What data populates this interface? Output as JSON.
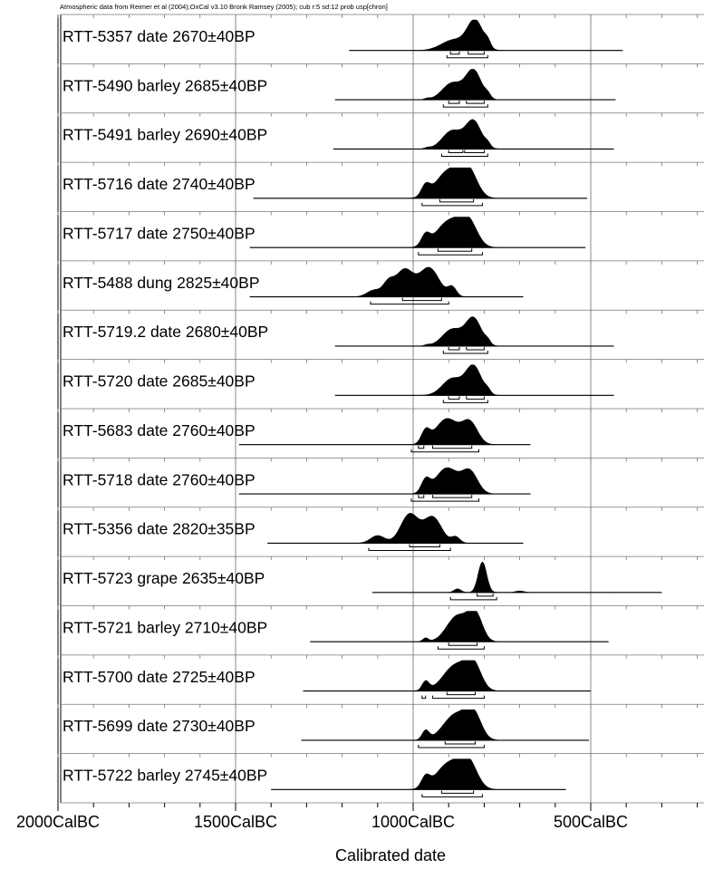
{
  "chart_data": {
    "type": "ridgeline",
    "header": "Atmospheric data from Reimer et al (2004);OxCal v3.10 Bronk Ramsey (2005); cub r:5 sd:12 prob usp[chron]",
    "xlabel": "Calibrated date",
    "xlim": [
      -2000,
      -200
    ],
    "x_ticks": [
      {
        "value": -2000,
        "label": "2000CalBC"
      },
      {
        "value": -1500,
        "label": "1500CalBC"
      },
      {
        "value": -1000,
        "label": "1000CalBC"
      },
      {
        "value": -500,
        "label": "500CalBC"
      }
    ],
    "series": [
      {
        "label": "RTT-5357 date  2670±40BP",
        "range": [
          -1180,
          -410
        ],
        "peaks": [
          [
            -885,
            0.35,
            35
          ],
          [
            -825,
            0.95,
            22
          ],
          [
            -790,
            0.18,
            8
          ]
        ],
        "sigma1": [
          [
            -895,
            -870
          ],
          [
            -845,
            -800
          ]
        ],
        "sigma2": [
          [
            -905,
            -790
          ]
        ]
      },
      {
        "label": "RTT-5490 barley  2685±40BP",
        "range": [
          -1220,
          -430
        ],
        "peaks": [
          [
            -890,
            0.55,
            28
          ],
          [
            -830,
            0.95,
            22
          ],
          [
            -790,
            0.12,
            8
          ],
          [
            -960,
            0.04,
            8
          ]
        ],
        "sigma1": [
          [
            -900,
            -870
          ],
          [
            -850,
            -800
          ]
        ],
        "sigma2": [
          [
            -915,
            -790
          ]
        ]
      },
      {
        "label": "RTT-5491 barley  2690±40BP",
        "range": [
          -1225,
          -435
        ],
        "peaks": [
          [
            -890,
            0.6,
            28
          ],
          [
            -830,
            0.9,
            22
          ],
          [
            -790,
            0.12,
            8
          ],
          [
            -960,
            0.04,
            8
          ]
        ],
        "sigma1": [
          [
            -900,
            -860
          ],
          [
            -855,
            -800
          ]
        ],
        "sigma2": [
          [
            -920,
            -790
          ]
        ]
      },
      {
        "label": "RTT-5716 date  2740±40BP",
        "range": [
          -1450,
          -510
        ],
        "peaks": [
          [
            -965,
            0.35,
            12
          ],
          [
            -900,
            0.9,
            35
          ],
          [
            -845,
            0.85,
            25
          ]
        ],
        "sigma1": [
          [
            -925,
            -830
          ]
        ],
        "sigma2": [
          [
            -975,
            -805
          ]
        ]
      },
      {
        "label": "RTT-5717 date  2750±40BP",
        "range": [
          -1460,
          -515
        ],
        "peaks": [
          [
            -965,
            0.35,
            12
          ],
          [
            -900,
            0.85,
            35
          ],
          [
            -845,
            0.8,
            25
          ]
        ],
        "sigma1": [
          [
            -930,
            -835
          ]
        ],
        "sigma2": [
          [
            -985,
            -805
          ]
        ]
      },
      {
        "label": "RTT-5488 dung  2825±40BP",
        "range": [
          -1460,
          -690
        ],
        "peaks": [
          [
            -1110,
            0.22,
            20
          ],
          [
            -1025,
            0.88,
            25
          ],
          [
            -955,
            0.95,
            28
          ],
          [
            -890,
            0.3,
            12
          ],
          [
            -1070,
            0.4,
            15
          ]
        ],
        "sigma1": [
          [
            -1030,
            -920
          ]
        ],
        "sigma2": [
          [
            -1120,
            -900
          ]
        ]
      },
      {
        "label": "RTT-5719.2 date  2680±40BP",
        "range": [
          -1220,
          -435
        ],
        "peaks": [
          [
            -890,
            0.55,
            28
          ],
          [
            -830,
            0.9,
            22
          ],
          [
            -790,
            0.12,
            8
          ],
          [
            -960,
            0.04,
            8
          ]
        ],
        "sigma1": [
          [
            -900,
            -870
          ],
          [
            -850,
            -800
          ]
        ],
        "sigma2": [
          [
            -915,
            -790
          ]
        ]
      },
      {
        "label": "RTT-5720 date  2685±40BP",
        "range": [
          -1220,
          -435
        ],
        "peaks": [
          [
            -890,
            0.55,
            28
          ],
          [
            -830,
            0.95,
            22
          ],
          [
            -790,
            0.12,
            8
          ]
        ],
        "sigma1": [
          [
            -900,
            -870
          ],
          [
            -850,
            -800
          ]
        ],
        "sigma2": [
          [
            -915,
            -790
          ]
        ]
      },
      {
        "label": "RTT-5683 date  2760±40BP",
        "range": [
          -1490,
          -670
        ],
        "peaks": [
          [
            -965,
            0.4,
            12
          ],
          [
            -905,
            0.85,
            32
          ],
          [
            -840,
            0.7,
            22
          ]
        ],
        "sigma1": [
          [
            -985,
            -970
          ],
          [
            -945,
            -835
          ]
        ],
        "sigma2": [
          [
            -1005,
            -815
          ]
        ]
      },
      {
        "label": "RTT-5718 date  2760±40BP",
        "range": [
          -1490,
          -670
        ],
        "peaks": [
          [
            -965,
            0.4,
            12
          ],
          [
            -905,
            0.85,
            32
          ],
          [
            -840,
            0.7,
            22
          ]
        ],
        "sigma1": [
          [
            -985,
            -970
          ],
          [
            -945,
            -835
          ]
        ],
        "sigma2": [
          [
            -1005,
            -815
          ]
        ]
      },
      {
        "label": "RTT-5356 date  2820±35BP",
        "range": [
          -1410,
          -690
        ],
        "peaks": [
          [
            -1100,
            0.25,
            20
          ],
          [
            -1010,
            0.95,
            25
          ],
          [
            -945,
            0.85,
            25
          ],
          [
            -880,
            0.2,
            12
          ]
        ],
        "sigma1": [
          [
            -1010,
            -925
          ]
        ],
        "sigma2": [
          [
            -1125,
            -895
          ]
        ]
      },
      {
        "label": "RTT-5723 grape  2635±40BP",
        "range": [
          -1115,
          -300
        ],
        "peaks": [
          [
            -805,
            1.0,
            12
          ],
          [
            -875,
            0.12,
            10
          ],
          [
            -700,
            0.05,
            12
          ]
        ],
        "sigma1": [
          [
            -820,
            -775
          ]
        ],
        "sigma2": [
          [
            -895,
            -765
          ]
        ]
      },
      {
        "label": "RTT-5721 barley  2710±40BP",
        "range": [
          -1290,
          -450
        ],
        "peaks": [
          [
            -875,
            0.85,
            30
          ],
          [
            -825,
            0.85,
            20
          ],
          [
            -965,
            0.12,
            8
          ]
        ],
        "sigma1": [
          [
            -900,
            -820
          ]
        ],
        "sigma2": [
          [
            -930,
            -800
          ]
        ]
      },
      {
        "label": "RTT-5700 date  2725±40BP",
        "range": [
          -1310,
          -500
        ],
        "peaks": [
          [
            -965,
            0.3,
            10
          ],
          [
            -880,
            0.85,
            35
          ],
          [
            -830,
            0.75,
            22
          ]
        ],
        "sigma1": [
          [
            -905,
            -825
          ]
        ],
        "sigma2": [
          [
            -975,
            -965
          ],
          [
            -945,
            -800
          ]
        ]
      },
      {
        "label": "RTT-5699 date  2730±40BP",
        "range": [
          -1315,
          -505
        ],
        "peaks": [
          [
            -965,
            0.3,
            10
          ],
          [
            -880,
            0.85,
            35
          ],
          [
            -830,
            0.75,
            22
          ]
        ],
        "sigma1": [
          [
            -910,
            -825
          ]
        ],
        "sigma2": [
          [
            -985,
            -800
          ]
        ]
      },
      {
        "label": "RTT-5722 barley  2745±40BP",
        "range": [
          -1400,
          -570
        ],
        "peaks": [
          [
            -965,
            0.35,
            12
          ],
          [
            -900,
            0.85,
            35
          ],
          [
            -845,
            0.85,
            25
          ]
        ],
        "sigma1": [
          [
            -920,
            -830
          ]
        ],
        "sigma2": [
          [
            -975,
            -805
          ]
        ]
      }
    ]
  }
}
